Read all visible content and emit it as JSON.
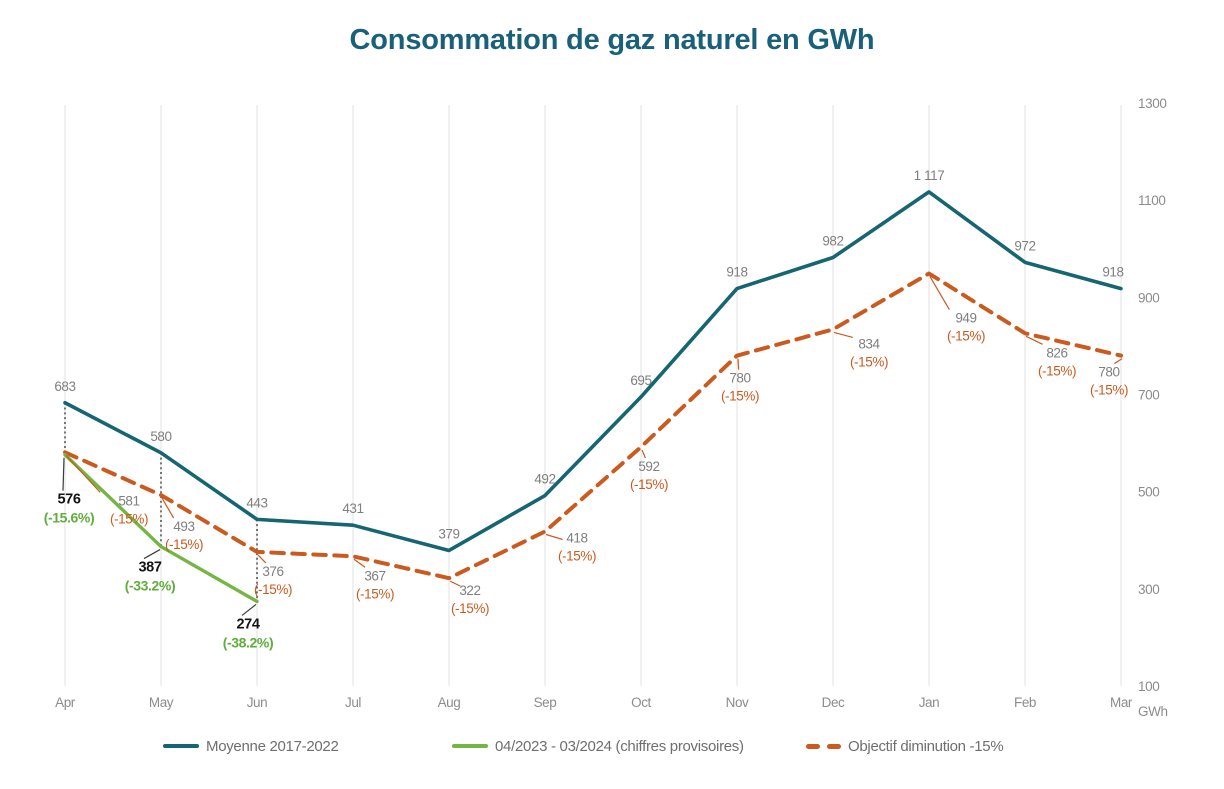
{
  "title": "Consommation de gaz naturel en GWh",
  "chart_data": {
    "type": "line",
    "title": "Consommation de gaz naturel en GWh",
    "categories": [
      "Apr",
      "May",
      "Jun",
      "Jul",
      "Aug",
      "Sep",
      "Oct",
      "Nov",
      "Dec",
      "Jan",
      "Feb",
      "Mar"
    ],
    "y_axis": {
      "side": "right",
      "min": 100,
      "max": 1300,
      "ticks": [
        1300,
        1100,
        900,
        700,
        500,
        300,
        100
      ],
      "unit_label": "GWh"
    },
    "grid": "vertical-only",
    "legend_position": "bottom",
    "series": [
      {
        "name": "Moyenne 2017-2022",
        "style": "solid",
        "color": "#156672",
        "values": [
          683,
          580,
          443,
          431,
          379,
          492,
          695,
          918,
          982,
          1117,
          972,
          918
        ],
        "value_labels": [
          "683",
          "580",
          "443",
          "431",
          "379",
          "492",
          "695",
          "918",
          "982",
          "1 117",
          "972",
          "918"
        ]
      },
      {
        "name": "04/2023 - 03/2024 (chiffres provisoires)",
        "style": "solid",
        "color": "#74b544",
        "values": [
          576,
          387,
          274
        ],
        "value_labels": [
          "576",
          "387",
          "274"
        ],
        "pct_labels": [
          "(-15.6%)",
          "(-33.2%)",
          "(-38.2%)"
        ]
      },
      {
        "name": "Objectif diminution -15%",
        "style": "dashed",
        "color": "#cb5a1e",
        "values": [
          581,
          493,
          376,
          367,
          322,
          418,
          592,
          780,
          834,
          949,
          826,
          780
        ],
        "value_labels": [
          "581",
          "493",
          "376",
          "367",
          "322",
          "418",
          "592",
          "780",
          "834",
          "949",
          "826",
          "780"
        ],
        "pct_labels": [
          "(-15%)",
          "(-15%)",
          "(-15%)",
          "(-15%)",
          "(-15%)",
          "(-15%)",
          "(-15%)",
          "(-15%)",
          "(-15%)",
          "(-15%)",
          "(-15%)",
          "(-15%)"
        ]
      }
    ]
  }
}
